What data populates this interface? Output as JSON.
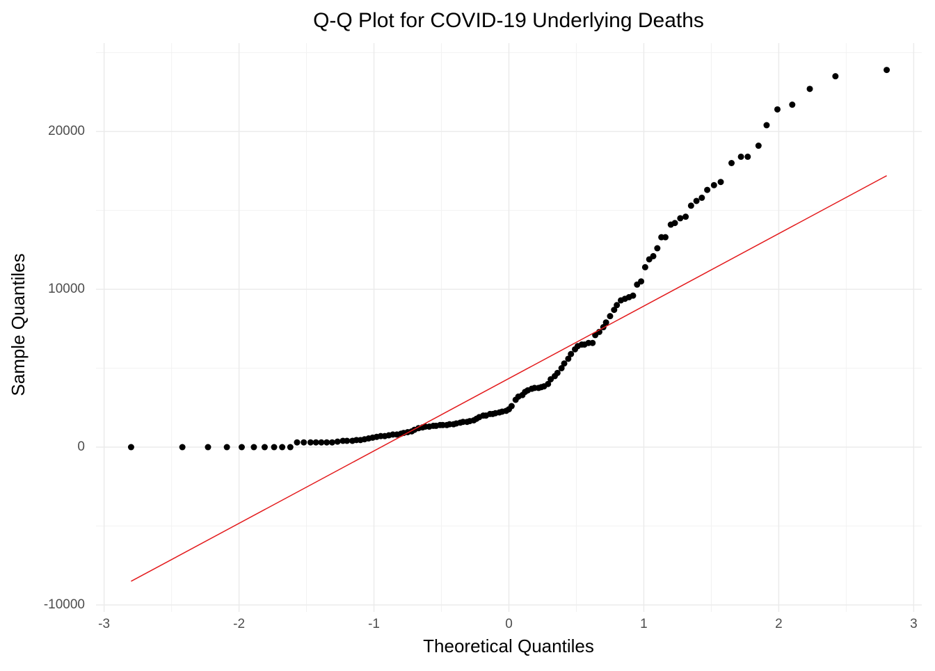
{
  "chart_data": {
    "type": "scatter",
    "title": "Q-Q Plot for COVID-19 Underlying Deaths",
    "x_label": "Theoretical Quantiles",
    "y_label": "Sample Quantiles",
    "xlim": [
      -3.06,
      3.06
    ],
    "ylim": [
      -10440,
      25600
    ],
    "xticks": [
      -3,
      -2,
      -1,
      0,
      1,
      2,
      3
    ],
    "yticks": [
      -10000,
      0,
      10000,
      20000
    ],
    "grid": true,
    "minor_grid": true,
    "series": [
      {
        "color": "#000000",
        "x": [
          -2.8,
          -2.42,
          -2.23,
          -2.09,
          -1.98,
          -1.89,
          -1.81,
          -1.74,
          -1.68,
          -1.62,
          -1.57,
          -1.52,
          -1.47,
          -1.43,
          -1.39,
          -1.35,
          -1.31,
          -1.27,
          -1.23,
          -1.2,
          -1.16,
          -1.13,
          -1.1,
          -1.07,
          -1.04,
          -1.01,
          -0.98,
          -0.95,
          -0.92,
          -0.89,
          -0.86,
          -0.83,
          -0.8,
          -0.78,
          -0.75,
          -0.72,
          -0.7,
          -0.67,
          -0.64,
          -0.62,
          -0.59,
          -0.56,
          -0.54,
          -0.51,
          -0.49,
          -0.46,
          -0.44,
          -0.41,
          -0.39,
          -0.36,
          -0.34,
          -0.31,
          -0.29,
          -0.26,
          -0.24,
          -0.22,
          -0.19,
          -0.17,
          -0.14,
          -0.12,
          -0.1,
          -0.07,
          -0.05,
          -0.02,
          0,
          0.02,
          0.05,
          0.07,
          0.1,
          0.12,
          0.14,
          0.17,
          0.19,
          0.22,
          0.24,
          0.26,
          0.29,
          0.31,
          0.34,
          0.36,
          0.39,
          0.41,
          0.44,
          0.46,
          0.49,
          0.51,
          0.54,
          0.56,
          0.59,
          0.62,
          0.64,
          0.67,
          0.7,
          0.72,
          0.75,
          0.78,
          0.8,
          0.83,
          0.86,
          0.89,
          0.92,
          0.95,
          0.98,
          1.01,
          1.04,
          1.07,
          1.1,
          1.13,
          1.16,
          1.2,
          1.23,
          1.27,
          1.31,
          1.35,
          1.39,
          1.43,
          1.47,
          1.52,
          1.57,
          1.65,
          1.72,
          1.77,
          1.85,
          1.91,
          1.99,
          2.1,
          2.23,
          2.42,
          2.8
        ],
        "y": [
          0,
          0,
          0,
          0,
          0,
          0,
          0,
          0,
          0,
          0,
          300,
          300,
          300,
          300,
          300,
          300,
          300,
          350,
          400,
          400,
          400,
          450,
          450,
          500,
          550,
          600,
          650,
          700,
          700,
          750,
          800,
          800,
          850,
          900,
          950,
          1000,
          1100,
          1200,
          1250,
          1300,
          1300,
          1350,
          1350,
          1400,
          1400,
          1400,
          1450,
          1450,
          1500,
          1550,
          1600,
          1600,
          1650,
          1700,
          1800,
          1900,
          2000,
          2000,
          2100,
          2100,
          2150,
          2200,
          2250,
          2300,
          2400,
          2600,
          3000,
          3200,
          3300,
          3500,
          3600,
          3700,
          3750,
          3750,
          3800,
          3850,
          4000,
          4300,
          4500,
          4700,
          5000,
          5300,
          5600,
          5900,
          6200,
          6400,
          6500,
          6500,
          6600,
          6600,
          7100,
          7300,
          7600,
          7900,
          8300,
          8700,
          9000,
          9300,
          9400,
          9500,
          9600,
          10300,
          10500,
          11400,
          11900,
          12100,
          12600,
          13300,
          13300,
          14100,
          14200,
          14500,
          14600,
          15300,
          15600,
          15800,
          16300,
          16600,
          16800,
          18000,
          18400,
          18400,
          19100,
          20400,
          21400,
          21700,
          22700,
          23500,
          23900
        ]
      }
    ],
    "reference_line": {
      "color": "#e31a1c",
      "x": [
        -2.8,
        2.8
      ],
      "y": [
        -8500,
        17200
      ]
    }
  }
}
